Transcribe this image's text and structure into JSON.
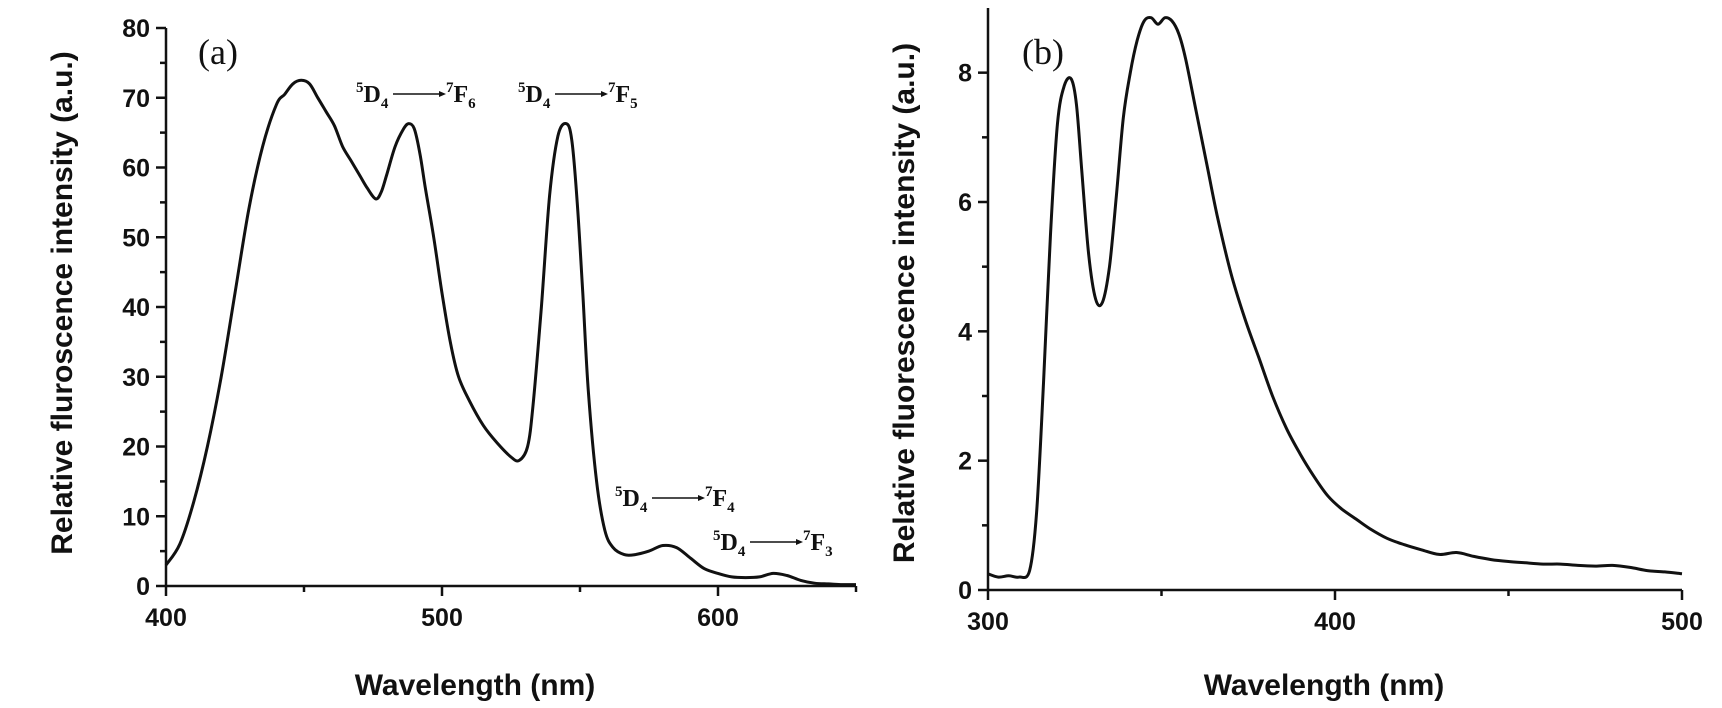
{
  "chart_data": [
    {
      "type": "line",
      "panel_label": "(a)",
      "xlabel": "Wavelength (nm)",
      "ylabel": "Relative fluroscence intensity (a.u.)",
      "xlim": [
        400,
        650
      ],
      "ylim": [
        0,
        80
      ],
      "xticks": [
        400,
        500,
        600
      ],
      "yticks": [
        0,
        10,
        20,
        30,
        40,
        50,
        60,
        70,
        80
      ],
      "grid": false,
      "series": [
        {
          "x": [
            400,
            405,
            410,
            415,
            420,
            425,
            430,
            435,
            440,
            443,
            446,
            449,
            452,
            455,
            458,
            461,
            464,
            467,
            470,
            473,
            476,
            478,
            480,
            483,
            486,
            488,
            490,
            492,
            494,
            497,
            500,
            503,
            506,
            510,
            515,
            520,
            525,
            528,
            531,
            533,
            536,
            539,
            542,
            545,
            547,
            549,
            551,
            553,
            556,
            559,
            562,
            566,
            570,
            575,
            580,
            585,
            590,
            595,
            600,
            605,
            610,
            615,
            620,
            625,
            630,
            635,
            640,
            645,
            650
          ],
          "y": [
            3,
            6,
            12,
            20,
            30,
            42,
            54,
            63,
            69,
            70.5,
            72,
            72.5,
            72,
            70,
            68,
            66,
            63,
            61,
            59,
            57,
            55.5,
            56.5,
            59,
            63,
            65.5,
            66.3,
            65.5,
            62,
            57,
            50,
            42,
            35,
            30,
            26.5,
            23,
            20.5,
            18.5,
            18,
            20,
            26,
            40,
            56,
            64.5,
            66.3,
            64,
            55,
            42,
            28,
            15,
            8,
            5.5,
            4.5,
            4.5,
            5,
            5.8,
            5.5,
            4,
            2.5,
            1.8,
            1.3,
            1.2,
            1.3,
            1.8,
            1.5,
            0.8,
            0.4,
            0.3,
            0.2,
            0.2
          ]
        }
      ],
      "annotations": [
        {
          "pre": "5",
          "a": "D",
          "a_sub": "4",
          "b_sup": "7",
          "b": "F",
          "b_sub": "6"
        },
        {
          "pre": "5",
          "a": "D",
          "a_sub": "4",
          "b_sup": "7",
          "b": "F",
          "b_sub": "5"
        },
        {
          "pre": "5",
          "a": "D",
          "a_sub": "4",
          "b_sup": "7",
          "b": "F",
          "b_sub": "4"
        },
        {
          "pre": "5",
          "a": "D",
          "a_sub": "4",
          "b_sup": "7",
          "b": "F",
          "b_sub": "3"
        }
      ]
    },
    {
      "type": "line",
      "panel_label": "(b)",
      "xlabel": "Wavelength (nm)",
      "ylabel": "Relative fluorescence intensity (a.u.)",
      "xlim": [
        300,
        500
      ],
      "ylim": [
        0,
        9
      ],
      "xticks": [
        300,
        400,
        500
      ],
      "yticks": [
        0,
        2,
        4,
        6,
        8
      ],
      "grid": false,
      "series": [
        {
          "x": [
            300,
            303,
            306,
            309,
            312,
            314,
            316,
            318,
            320,
            322,
            324,
            325.5,
            327,
            329,
            331,
            333,
            335,
            337,
            339,
            341,
            343,
            345,
            347,
            349,
            351,
            353,
            355,
            357,
            360,
            363,
            366,
            370,
            374,
            378,
            382,
            386,
            390,
            394,
            398,
            402,
            406,
            410,
            415,
            420,
            425,
            430,
            435,
            440,
            445,
            450,
            455,
            460,
            465,
            470,
            475,
            480,
            485,
            490,
            495,
            500
          ],
          "y": [
            0.25,
            0.2,
            0.22,
            0.2,
            0.3,
            1.2,
            3.2,
            5.5,
            7.2,
            7.8,
            7.9,
            7.5,
            6.5,
            5.2,
            4.5,
            4.45,
            5.0,
            6.1,
            7.3,
            8.0,
            8.5,
            8.8,
            8.85,
            8.75,
            8.85,
            8.8,
            8.6,
            8.2,
            7.4,
            6.6,
            5.8,
            4.9,
            4.2,
            3.6,
            3.0,
            2.5,
            2.1,
            1.75,
            1.45,
            1.25,
            1.1,
            0.95,
            0.8,
            0.7,
            0.62,
            0.55,
            0.58,
            0.52,
            0.47,
            0.44,
            0.42,
            0.4,
            0.4,
            0.38,
            0.37,
            0.38,
            0.35,
            0.3,
            0.28,
            0.25
          ]
        }
      ],
      "annotations": []
    }
  ]
}
